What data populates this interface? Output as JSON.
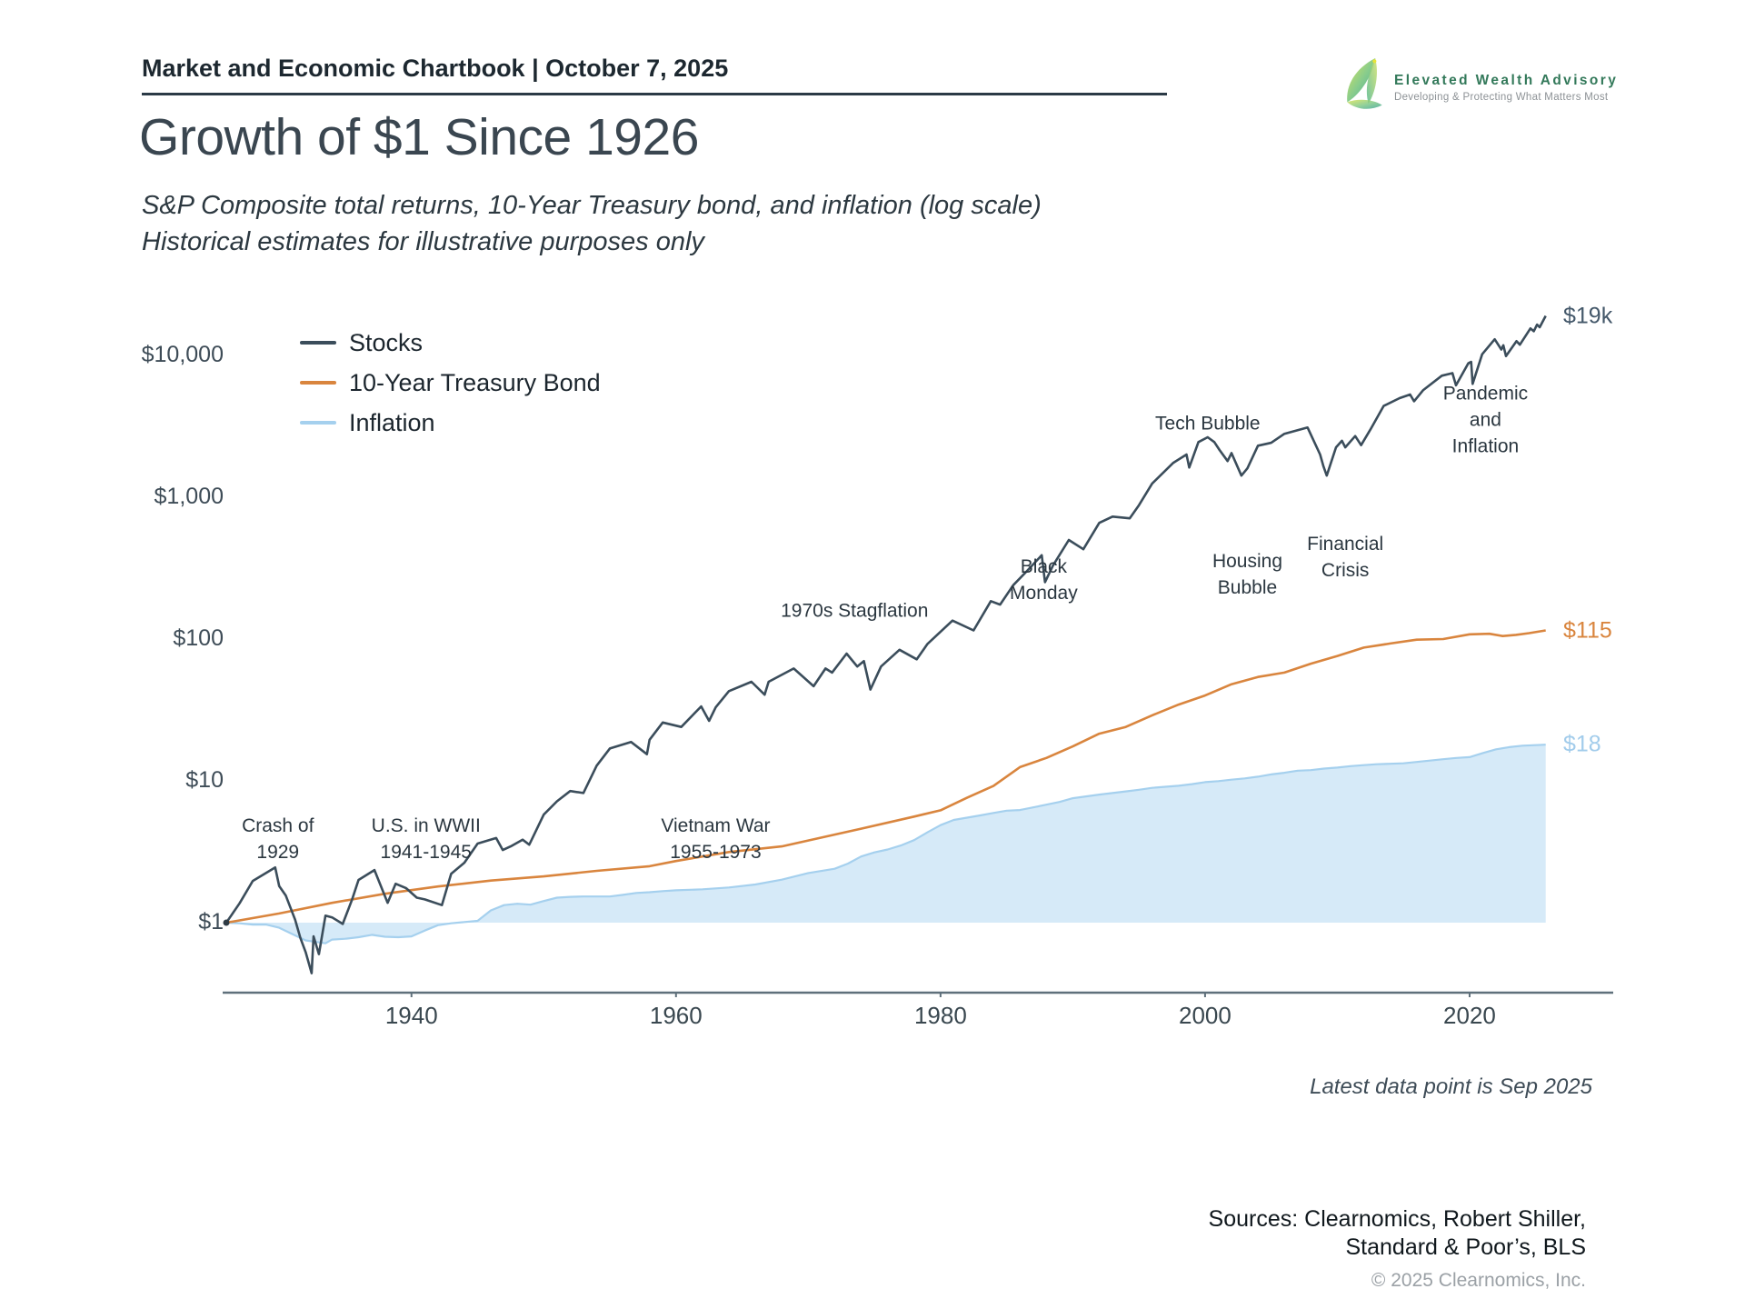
{
  "header": {
    "chartbook_title": "Market and Economic Chartbook | October 7, 2025"
  },
  "logo": {
    "brand": "Elevated Wealth Advisory",
    "tagline": "Developing & Protecting What Matters Most",
    "brand_color": "#33795a"
  },
  "title": "Growth of $1 Since 1926",
  "subtitle_line1": "S&P Composite total returns, 10-Year Treasury bond, and inflation (log scale)",
  "subtitle_line2": "Historical estimates for illustrative purposes only",
  "footnote": "Latest data point is Sep 2025",
  "sources_line1": "Sources: Clearnomics, Robert Shiller,",
  "sources_line2": "Standard & Poor’s, BLS",
  "copyright": "© 2025 Clearnomics, Inc.",
  "chart_data": {
    "type": "line",
    "log_scale": true,
    "x_range": [
      1926,
      2025.75
    ],
    "ylim": [
      0.4,
      25000
    ],
    "grid": false,
    "legend_position": "top-left",
    "x_ticks": [
      1940,
      1960,
      1980,
      2000,
      2020
    ],
    "y_ticks": [
      {
        "value": 1,
        "label": "$1"
      },
      {
        "value": 10,
        "label": "$10"
      },
      {
        "value": 100,
        "label": "$100"
      },
      {
        "value": 1000,
        "label": "$1,000"
      },
      {
        "value": 10000,
        "label": "$10,000"
      }
    ],
    "legend": [
      {
        "name": "Stocks",
        "color": "#3b4d5b"
      },
      {
        "name": "10-Year Treasury Bond",
        "color": "#d9853e"
      },
      {
        "name": "Inflation",
        "color": "#a5d0ee"
      }
    ],
    "series": [
      {
        "id": "stocks",
        "name": "Stocks",
        "color": "#3b4d5b",
        "end_label": "$19k",
        "end_label_color": "#44586a",
        "points": [
          [
            1926,
            1
          ],
          [
            1927,
            1.37
          ],
          [
            1928,
            1.97
          ],
          [
            1929.7,
            2.45
          ],
          [
            1930,
            1.81
          ],
          [
            1930.5,
            1.55
          ],
          [
            1931.2,
            1.05
          ],
          [
            1931.6,
            0.78
          ],
          [
            1932,
            0.62
          ],
          [
            1932.45,
            0.44
          ],
          [
            1932.6,
            0.8
          ],
          [
            1933,
            0.6
          ],
          [
            1933.5,
            1.12
          ],
          [
            1934,
            1.09
          ],
          [
            1934.8,
            0.98
          ],
          [
            1935.5,
            1.45
          ],
          [
            1936,
            2.0
          ],
          [
            1937.2,
            2.35
          ],
          [
            1938.2,
            1.38
          ],
          [
            1938.8,
            1.88
          ],
          [
            1939.6,
            1.75
          ],
          [
            1940.4,
            1.5
          ],
          [
            1941,
            1.46
          ],
          [
            1942.3,
            1.33
          ],
          [
            1943,
            2.21
          ],
          [
            1944,
            2.65
          ],
          [
            1945,
            3.61
          ],
          [
            1946.4,
            3.95
          ],
          [
            1946.9,
            3.25
          ],
          [
            1947.5,
            3.45
          ],
          [
            1948.4,
            3.85
          ],
          [
            1948.9,
            3.55
          ],
          [
            1949,
            3.7
          ],
          [
            1950,
            5.78
          ],
          [
            1951,
            7.17
          ],
          [
            1952,
            8.48
          ],
          [
            1953,
            8.2
          ],
          [
            1954,
            12.8
          ],
          [
            1955,
            16.9
          ],
          [
            1956.6,
            18.8
          ],
          [
            1957.8,
            15.4
          ],
          [
            1958,
            19.5
          ],
          [
            1959,
            25.8
          ],
          [
            1960.4,
            24.0
          ],
          [
            1961.9,
            33.5
          ],
          [
            1962.5,
            26.5
          ],
          [
            1963,
            33.0
          ],
          [
            1964,
            42.9
          ],
          [
            1965.7,
            50.0
          ],
          [
            1966.7,
            40.5
          ],
          [
            1967,
            50.0
          ],
          [
            1968.9,
            62.0
          ],
          [
            1970.4,
            46.5
          ],
          [
            1971.3,
            62.0
          ],
          [
            1971.8,
            58.0
          ],
          [
            1972.9,
            79.0
          ],
          [
            1973.7,
            64.0
          ],
          [
            1974.2,
            70.0
          ],
          [
            1974.7,
            44.0
          ],
          [
            1975.5,
            64.0
          ],
          [
            1976.9,
            84.0
          ],
          [
            1978.2,
            72.0
          ],
          [
            1979,
            92.0
          ],
          [
            1980.9,
            135
          ],
          [
            1982.5,
            115
          ],
          [
            1983.8,
            185
          ],
          [
            1984.5,
            175
          ],
          [
            1985.5,
            240
          ],
          [
            1986.5,
            300
          ],
          [
            1987.65,
            390
          ],
          [
            1987.9,
            252
          ],
          [
            1988.5,
            330
          ],
          [
            1989.7,
            500
          ],
          [
            1990.8,
            430
          ],
          [
            1992,
            660
          ],
          [
            1993,
            730
          ],
          [
            1994.3,
            710
          ],
          [
            1995,
            880
          ],
          [
            1996,
            1250
          ],
          [
            1997.6,
            1750
          ],
          [
            1998.6,
            2000
          ],
          [
            1998.8,
            1620
          ],
          [
            1999.5,
            2450
          ],
          [
            2000.2,
            2650
          ],
          [
            2000.7,
            2450
          ],
          [
            2001.1,
            2150
          ],
          [
            2001.7,
            1800
          ],
          [
            2002,
            2050
          ],
          [
            2002.75,
            1420
          ],
          [
            2003.2,
            1600
          ],
          [
            2004,
            2310
          ],
          [
            2005,
            2420
          ],
          [
            2006,
            2800
          ],
          [
            2007.75,
            3100
          ],
          [
            2008.7,
            2000
          ],
          [
            2008.95,
            1650
          ],
          [
            2009.2,
            1420
          ],
          [
            2009.9,
            2250
          ],
          [
            2010.35,
            2500
          ],
          [
            2010.6,
            2250
          ],
          [
            2011.35,
            2700
          ],
          [
            2011.8,
            2330
          ],
          [
            2012.5,
            3000
          ],
          [
            2013.5,
            4400
          ],
          [
            2014.7,
            5000
          ],
          [
            2015.5,
            5300
          ],
          [
            2015.8,
            4750
          ],
          [
            2016.5,
            5700
          ],
          [
            2017.9,
            7200
          ],
          [
            2018.7,
            7500
          ],
          [
            2018.97,
            6150
          ],
          [
            2019.9,
            8800
          ],
          [
            2020.12,
            9000
          ],
          [
            2020.23,
            6300
          ],
          [
            2020.95,
            10200
          ],
          [
            2021.9,
            13000
          ],
          [
            2022.4,
            11000
          ],
          [
            2022.55,
            11800
          ],
          [
            2022.75,
            9900
          ],
          [
            2023.55,
            12600
          ],
          [
            2023.8,
            11900
          ],
          [
            2024.6,
            15500
          ],
          [
            2024.85,
            14800
          ],
          [
            2025.1,
            16500
          ],
          [
            2025.3,
            15800
          ],
          [
            2025.75,
            19000
          ]
        ]
      },
      {
        "id": "bond",
        "name": "10-Year Treasury Bond",
        "color": "#d9853e",
        "end_label": "$115",
        "end_label_color": "#d9853e",
        "points": [
          [
            1926,
            1
          ],
          [
            1930,
            1.16
          ],
          [
            1934,
            1.38
          ],
          [
            1938,
            1.6
          ],
          [
            1942,
            1.8
          ],
          [
            1946,
            1.98
          ],
          [
            1950,
            2.12
          ],
          [
            1954,
            2.32
          ],
          [
            1958,
            2.5
          ],
          [
            1960,
            2.72
          ],
          [
            1964,
            3.15
          ],
          [
            1968,
            3.45
          ],
          [
            1970,
            3.8
          ],
          [
            1974,
            4.6
          ],
          [
            1978,
            5.6
          ],
          [
            1980,
            6.2
          ],
          [
            1982,
            7.6
          ],
          [
            1984,
            9.2
          ],
          [
            1986,
            12.5
          ],
          [
            1988,
            14.5
          ],
          [
            1990,
            17.5
          ],
          [
            1992,
            21.5
          ],
          [
            1994,
            24.0
          ],
          [
            1996,
            29.0
          ],
          [
            1998,
            34.5
          ],
          [
            2000,
            40.0
          ],
          [
            2002,
            48.0
          ],
          [
            2004,
            54.0
          ],
          [
            2006,
            58.0
          ],
          [
            2008,
            67.0
          ],
          [
            2010,
            76.0
          ],
          [
            2012,
            87.0
          ],
          [
            2014,
            93.0
          ],
          [
            2016,
            99.0
          ],
          [
            2018,
            100.0
          ],
          [
            2020,
            108.0
          ],
          [
            2021.5,
            109.0
          ],
          [
            2022.5,
            105.0
          ],
          [
            2023.5,
            107.0
          ],
          [
            2024.5,
            110.0
          ],
          [
            2025.75,
            115.0
          ]
        ]
      },
      {
        "id": "inflation",
        "name": "Inflation",
        "color": "#a5d0ee",
        "fill": "#d6eaf8",
        "area_baseline": 1,
        "end_label": "$18",
        "end_label_color": "#a2cceb",
        "points": [
          [
            1926,
            1.0
          ],
          [
            1927,
            0.99
          ],
          [
            1928,
            0.97
          ],
          [
            1929,
            0.97
          ],
          [
            1930,
            0.92
          ],
          [
            1931,
            0.83
          ],
          [
            1932,
            0.75
          ],
          [
            1933.5,
            0.715
          ],
          [
            1934,
            0.76
          ],
          [
            1935,
            0.77
          ],
          [
            1936,
            0.79
          ],
          [
            1937,
            0.82
          ],
          [
            1938,
            0.795
          ],
          [
            1939,
            0.79
          ],
          [
            1940,
            0.8
          ],
          [
            1941,
            0.88
          ],
          [
            1942,
            0.96
          ],
          [
            1943,
            0.99
          ],
          [
            1944,
            1.01
          ],
          [
            1945,
            1.03
          ],
          [
            1946,
            1.22
          ],
          [
            1947,
            1.33
          ],
          [
            1948,
            1.36
          ],
          [
            1949,
            1.34
          ],
          [
            1950,
            1.42
          ],
          [
            1951,
            1.5
          ],
          [
            1952,
            1.52
          ],
          [
            1953,
            1.53
          ],
          [
            1955,
            1.53
          ],
          [
            1956,
            1.57
          ],
          [
            1957,
            1.62
          ],
          [
            1958,
            1.64
          ],
          [
            1959,
            1.67
          ],
          [
            1960,
            1.69
          ],
          [
            1962,
            1.72
          ],
          [
            1964,
            1.77
          ],
          [
            1966,
            1.86
          ],
          [
            1968,
            2.01
          ],
          [
            1970,
            2.24
          ],
          [
            1972,
            2.4
          ],
          [
            1973,
            2.61
          ],
          [
            1974,
            2.93
          ],
          [
            1975,
            3.13
          ],
          [
            1976,
            3.28
          ],
          [
            1977,
            3.5
          ],
          [
            1978,
            3.82
          ],
          [
            1979,
            4.33
          ],
          [
            1980,
            4.87
          ],
          [
            1981,
            5.3
          ],
          [
            1982,
            5.5
          ],
          [
            1983,
            5.71
          ],
          [
            1984,
            5.94
          ],
          [
            1985,
            6.16
          ],
          [
            1986,
            6.23
          ],
          [
            1987,
            6.5
          ],
          [
            1988,
            6.79
          ],
          [
            1989,
            7.1
          ],
          [
            1990,
            7.54
          ],
          [
            1991,
            7.77
          ],
          [
            1992,
            8.0
          ],
          [
            1993,
            8.21
          ],
          [
            1994,
            8.43
          ],
          [
            1995,
            8.65
          ],
          [
            1996,
            8.93
          ],
          [
            1997,
            9.08
          ],
          [
            1998,
            9.23
          ],
          [
            1999,
            9.48
          ],
          [
            2000,
            9.8
          ],
          [
            2001,
            9.95
          ],
          [
            2002,
            10.2
          ],
          [
            2003,
            10.4
          ],
          [
            2004,
            10.7
          ],
          [
            2005,
            11.1
          ],
          [
            2006,
            11.4
          ],
          [
            2007,
            11.8
          ],
          [
            2008,
            11.9
          ],
          [
            2009,
            12.2
          ],
          [
            2010,
            12.4
          ],
          [
            2011,
            12.7
          ],
          [
            2012,
            12.9
          ],
          [
            2013,
            13.1
          ],
          [
            2014,
            13.2
          ],
          [
            2015,
            13.3
          ],
          [
            2016,
            13.6
          ],
          [
            2017,
            13.9
          ],
          [
            2018,
            14.2
          ],
          [
            2019,
            14.5
          ],
          [
            2020,
            14.7
          ],
          [
            2021,
            15.7
          ],
          [
            2022,
            16.7
          ],
          [
            2023,
            17.3
          ],
          [
            2024,
            17.7
          ],
          [
            2025.75,
            18.0
          ]
        ]
      }
    ],
    "annotations": [
      {
        "lines": [
          "Crash of",
          "1929"
        ],
        "x": 1929.9,
        "value": 3.9
      },
      {
        "lines": [
          "U.S. in WWII",
          "1941-1945"
        ],
        "x": 1941.1,
        "value": 3.9
      },
      {
        "lines": [
          "Vietnam War",
          "1955-1973"
        ],
        "x": 1963.0,
        "value": 3.9
      },
      {
        "lines": [
          "1970s Stagflation"
        ],
        "x": 1973.5,
        "value": 158
      },
      {
        "lines": [
          "Black",
          "Monday"
        ],
        "x": 1987.8,
        "value": 262
      },
      {
        "lines": [
          "Tech Bubble"
        ],
        "x": 2000.2,
        "value": 3300
      },
      {
        "lines": [
          "Housing",
          "Bubble"
        ],
        "x": 2003.2,
        "value": 285
      },
      {
        "lines": [
          "Financial",
          "Crisis"
        ],
        "x": 2010.6,
        "value": 380
      },
      {
        "lines": [
          "Pandemic",
          "and",
          "Inflation"
        ],
        "x": 2021.2,
        "value": 3500
      }
    ]
  }
}
